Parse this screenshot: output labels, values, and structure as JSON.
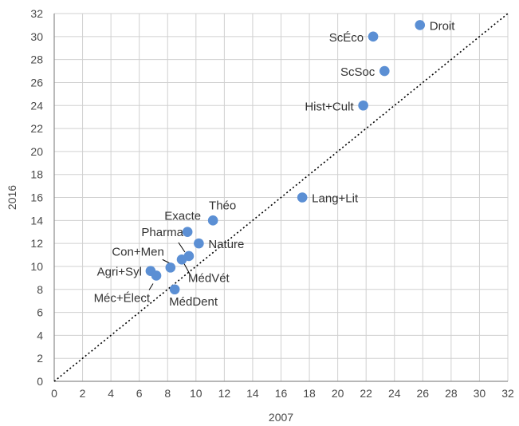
{
  "chart_data": {
    "type": "scatter",
    "xlabel": "2007",
    "ylabel": "2016",
    "xlim": [
      0,
      32
    ],
    "ylim": [
      0,
      32
    ],
    "x_ticks": [
      0,
      2,
      4,
      6,
      8,
      10,
      12,
      14,
      16,
      18,
      20,
      22,
      24,
      26,
      28,
      30,
      32
    ],
    "y_ticks": [
      0,
      2,
      4,
      6,
      8,
      10,
      12,
      14,
      16,
      18,
      20,
      22,
      24,
      26,
      28,
      30,
      32
    ],
    "grid": true,
    "reference_line": {
      "style": "dotted",
      "from": [
        0,
        0
      ],
      "to": [
        32,
        32
      ]
    },
    "marker_color": "#5b8fd4",
    "points": [
      {
        "label": "Droit",
        "x": 25.8,
        "y": 31.0
      },
      {
        "label": "ScÉco",
        "x": 22.5,
        "y": 30.0
      },
      {
        "label": "ScSoc",
        "x": 23.3,
        "y": 27.0
      },
      {
        "label": "Hist+Cult",
        "x": 21.8,
        "y": 24.0
      },
      {
        "label": "Lang+Lit",
        "x": 17.5,
        "y": 16.0
      },
      {
        "label": "Théo",
        "x": 11.2,
        "y": 14.0
      },
      {
        "label": "Exacte",
        "x": 9.4,
        "y": 13.0
      },
      {
        "label": "Nature",
        "x": 10.2,
        "y": 12.0
      },
      {
        "label": "Pharma",
        "x": 9.5,
        "y": 10.9
      },
      {
        "label": "MédVét",
        "x": 9.0,
        "y": 10.6
      },
      {
        "label": "Con+Men",
        "x": 8.2,
        "y": 9.9
      },
      {
        "label": "Agri+Syl",
        "x": 6.8,
        "y": 9.6
      },
      {
        "label": "Méc+Élect",
        "x": 7.2,
        "y": 9.2
      },
      {
        "label": "MédDent",
        "x": 8.5,
        "y": 8.0
      }
    ]
  }
}
